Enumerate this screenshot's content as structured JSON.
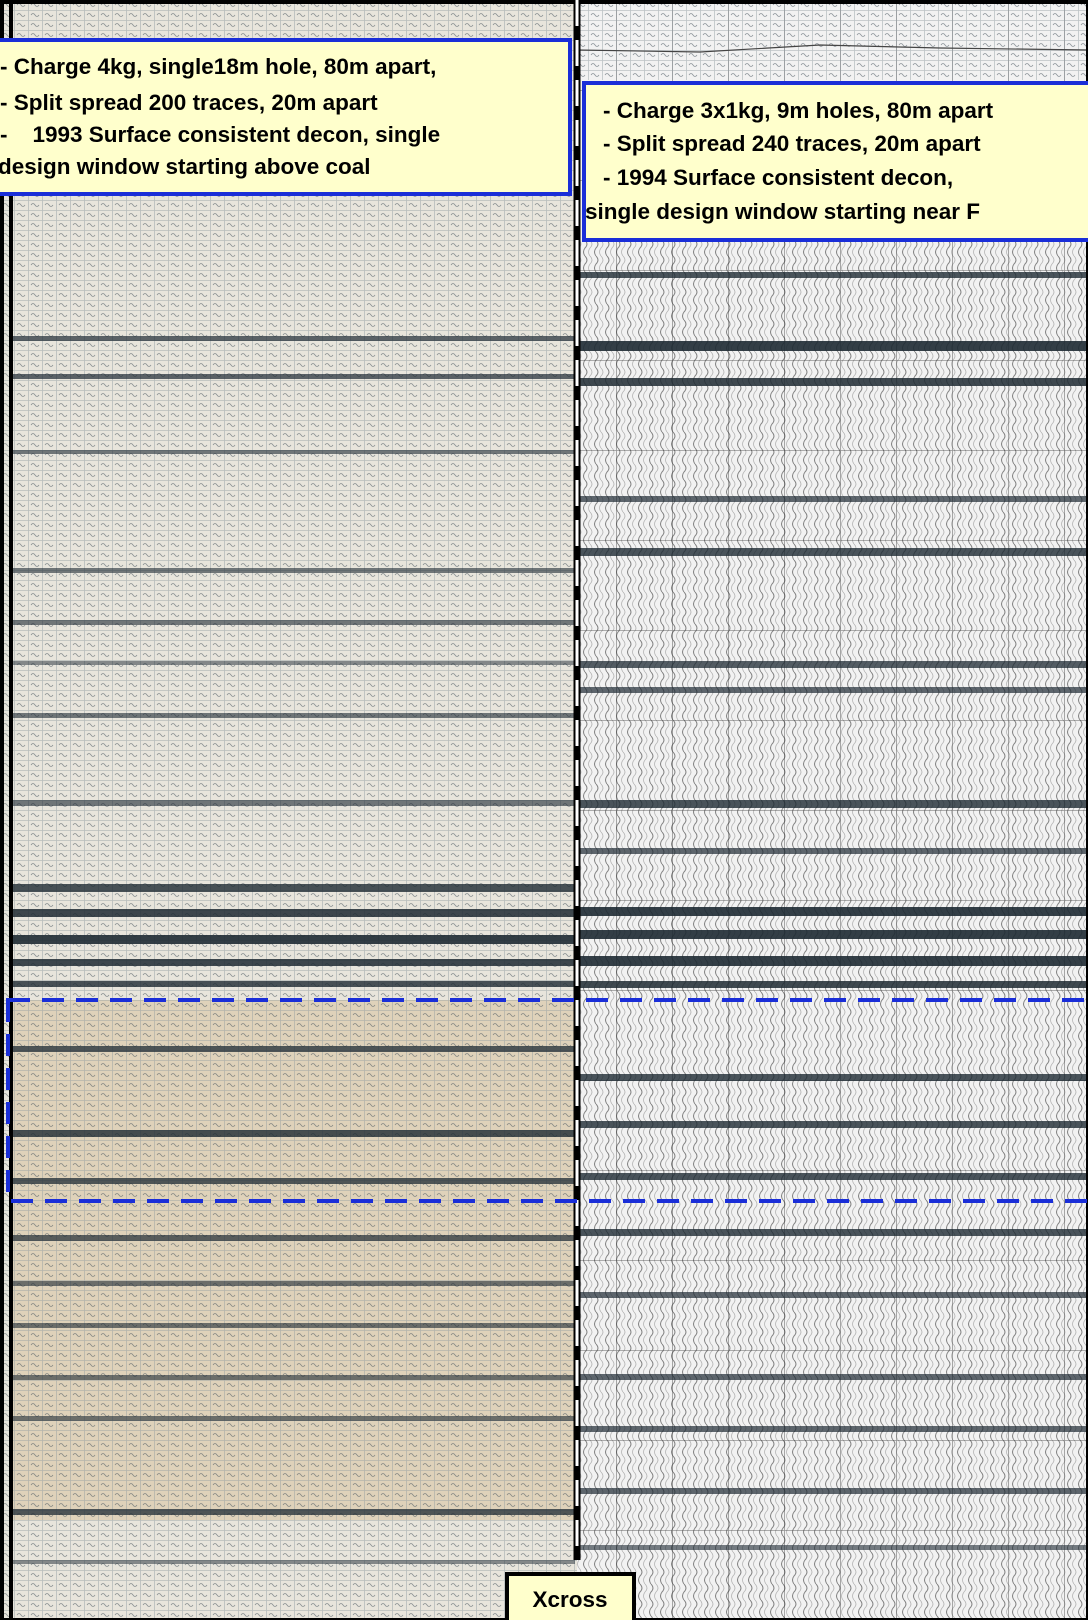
{
  "left_panel": {
    "lines": [
      "- Charge 4kg, single18m hole, 80m apart,",
      "- Split spread 200 traces, 20m apart",
      "-    1993 Surface consistent decon, single",
      "design window starting above coal"
    ]
  },
  "right_panel": {
    "lines": [
      "- Charge 3x1kg, 9m holes, 80m apart",
      "- Split spread 240 traces, 20m apart",
      "- 1994 Surface consistent decon,",
      "single design window starting near F"
    ]
  },
  "crossing_label": "Xcross"
}
